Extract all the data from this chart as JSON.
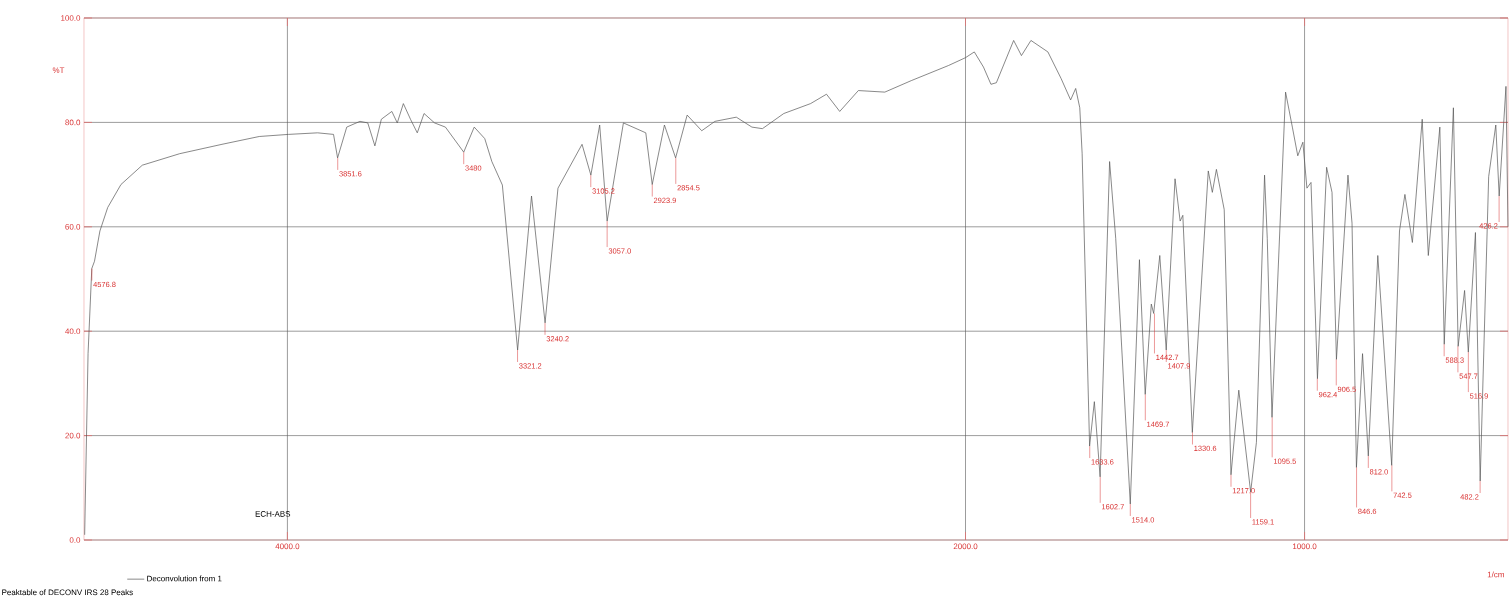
{
  "chart_data": {
    "type": "line",
    "ylabel": "%T",
    "xlabel": "1/cm",
    "legend": "bottom left",
    "grid": true,
    "xlim": [
      4600,
      400
    ],
    "xticks": [
      {
        "value": 4000,
        "label": "4000.0"
      },
      {
        "value": 2000,
        "label": "2000.0"
      },
      {
        "value": 1000,
        "label": "1000.0"
      }
    ],
    "ylim": [
      0,
      100
    ],
    "yticks": [
      {
        "value": 0,
        "label": "0.0"
      },
      {
        "value": 20,
        "label": "20.0"
      },
      {
        "value": 40,
        "label": "40.0"
      },
      {
        "value": 60,
        "label": "60.0"
      },
      {
        "value": 80,
        "label": "80.0"
      },
      {
        "value": 100,
        "label": "100.0"
      }
    ],
    "series": [
      {
        "name": "Deconvolution from 1",
        "color": "#555555",
        "x": [
          4598,
          4588,
          4577,
          4569,
          4553,
          4530,
          4491,
          4428,
          4318,
          4193,
          4083,
          3997,
          3911,
          3864,
          3852,
          3825,
          3786,
          3763,
          3742,
          3723,
          3692,
          3676,
          3658,
          3637,
          3617,
          3597,
          3566,
          3534,
          3480,
          3449,
          3418,
          3397,
          3366,
          3321,
          3280,
          3240,
          3202,
          3131,
          3105,
          3079,
          3057,
          3009,
          2943,
          2924,
          2888,
          2855,
          2821,
          2778,
          2739,
          2676,
          2630,
          2599,
          2536,
          2457,
          2410,
          2371,
          2316,
          2238,
          2160,
          2050,
          2000,
          1974,
          1947,
          1925,
          1909,
          1858,
          1835,
          1807,
          1757,
          1718,
          1690,
          1675,
          1663,
          1656,
          1634,
          1620,
          1603,
          1575,
          1557,
          1514,
          1487,
          1470,
          1452,
          1445,
          1427,
          1408,
          1382,
          1367,
          1359,
          1331,
          1284,
          1272,
          1260,
          1237,
          1217,
          1194,
          1159,
          1142,
          1118,
          1110,
          1096,
          1056,
          1036,
          1020,
          1005,
          993,
          981,
          962,
          935,
          919,
          906,
          872,
          860,
          847,
          829,
          812,
          784,
          743,
          720,
          704,
          682,
          653,
          635,
          601,
          588,
          561,
          547,
          528,
          517,
          496,
          482,
          457,
          436,
          426,
          406,
          400
        ],
        "values": [
          1,
          35.7,
          52,
          53.4,
          59.2,
          63.7,
          68.1,
          71.8,
          74,
          75.8,
          77.3,
          77.7,
          78,
          77.7,
          73.2,
          79.1,
          80.2,
          79.9,
          75.5,
          80.6,
          82.1,
          79.9,
          83.6,
          80.6,
          78,
          81.7,
          79.9,
          79.1,
          74.3,
          79.1,
          76.9,
          72.5,
          68,
          36.4,
          65.9,
          41.6,
          67.4,
          75.8,
          69.9,
          79.5,
          61.1,
          79.9,
          78,
          68.1,
          79.5,
          73.2,
          81.4,
          78.4,
          80.2,
          81,
          79.1,
          78.8,
          81.7,
          83.6,
          85.4,
          82.1,
          86.1,
          85.8,
          88,
          90.9,
          92.4,
          93.5,
          90.6,
          87.3,
          87.6,
          95.7,
          92.8,
          95.7,
          93.5,
          88.4,
          84.3,
          86.5,
          82.8,
          74,
          18,
          26.5,
          12.1,
          72.5,
          57.8,
          6.9,
          53.7,
          27.9,
          45.2,
          43.4,
          54.5,
          36.4,
          69.2,
          61.1,
          62.2,
          20.6,
          70.7,
          66.6,
          71,
          63.3,
          12.5,
          28.7,
          9.2,
          18.7,
          69.9,
          57.8,
          23.5,
          85.8,
          79.1,
          73.6,
          76.2,
          67.4,
          68.5,
          30.9,
          71.4,
          66.6,
          34.6,
          69.9,
          60.7,
          13.9,
          35.7,
          16.1,
          54.5,
          14.3,
          59.2,
          66.2,
          57,
          80.6,
          54.5,
          79.1,
          37.5,
          82.8,
          37.1,
          47.8,
          36,
          58.9,
          11.3,
          69.6,
          79.5,
          65.9,
          86.9,
          60
        ]
      }
    ],
    "annotations": [
      "ECH-ABS",
      "Peaktable of DECONV IRS 28 Peaks",
      {
        "text": "4576.8",
        "x": 4576.8,
        "y": 52
      },
      {
        "text": "3851.6",
        "x": 3851.6,
        "y": 73.2
      },
      {
        "text": "3480",
        "x": 3480,
        "y": 74.3
      },
      {
        "text": "3321.2",
        "x": 3321.2,
        "y": 36.4
      },
      {
        "text": "3240.2",
        "x": 3240.2,
        "y": 41.6
      },
      {
        "text": "3105.2",
        "x": 3105.2,
        "y": 69.9
      },
      {
        "text": "3057.0",
        "x": 3057.0,
        "y": 61.1
      },
      {
        "text": "2923.9",
        "x": 2923.9,
        "y": 68.1
      },
      {
        "text": "2854.5",
        "x": 2854.5,
        "y": 73.2
      },
      {
        "text": "1633.6",
        "x": 1633.6,
        "y": 18
      },
      {
        "text": "1602.7",
        "x": 1602.7,
        "y": 12.1
      },
      {
        "text": "1514.0",
        "x": 1514.0,
        "y": 6.9
      },
      {
        "text": "1469.7",
        "x": 1469.7,
        "y": 27.9
      },
      {
        "text": "1442.7",
        "x": 1442.7,
        "y": 43.4
      },
      {
        "text": "1407.9",
        "x": 1407.9,
        "y": 36.4
      },
      {
        "text": "1330.6",
        "x": 1330.6,
        "y": 20.6
      },
      {
        "text": "1217.0",
        "x": 1217.0,
        "y": 12.5
      },
      {
        "text": "1159.1",
        "x": 1159.1,
        "y": 9.2
      },
      {
        "text": "1095.5",
        "x": 1095.5,
        "y": 23.5
      },
      {
        "text": "962.4",
        "x": 962.4,
        "y": 30.9
      },
      {
        "text": "906.5",
        "x": 906.5,
        "y": 34.6
      },
      {
        "text": "846.6",
        "x": 846.6,
        "y": 13.9
      },
      {
        "text": "812.0",
        "x": 812.0,
        "y": 16.1
      },
      {
        "text": "742.5",
        "x": 742.5,
        "y": 14.3
      },
      {
        "text": "588.3",
        "x": 588.3,
        "y": 37.5
      },
      {
        "text": "547.7",
        "x": 547.7,
        "y": 37.1
      },
      {
        "text": "516.9",
        "x": 516.9,
        "y": 36
      },
      {
        "text": "482.2",
        "x": 482.2,
        "y": 11.3
      },
      {
        "text": "426.2",
        "x": 426.2,
        "y": 65.9
      }
    ]
  }
}
